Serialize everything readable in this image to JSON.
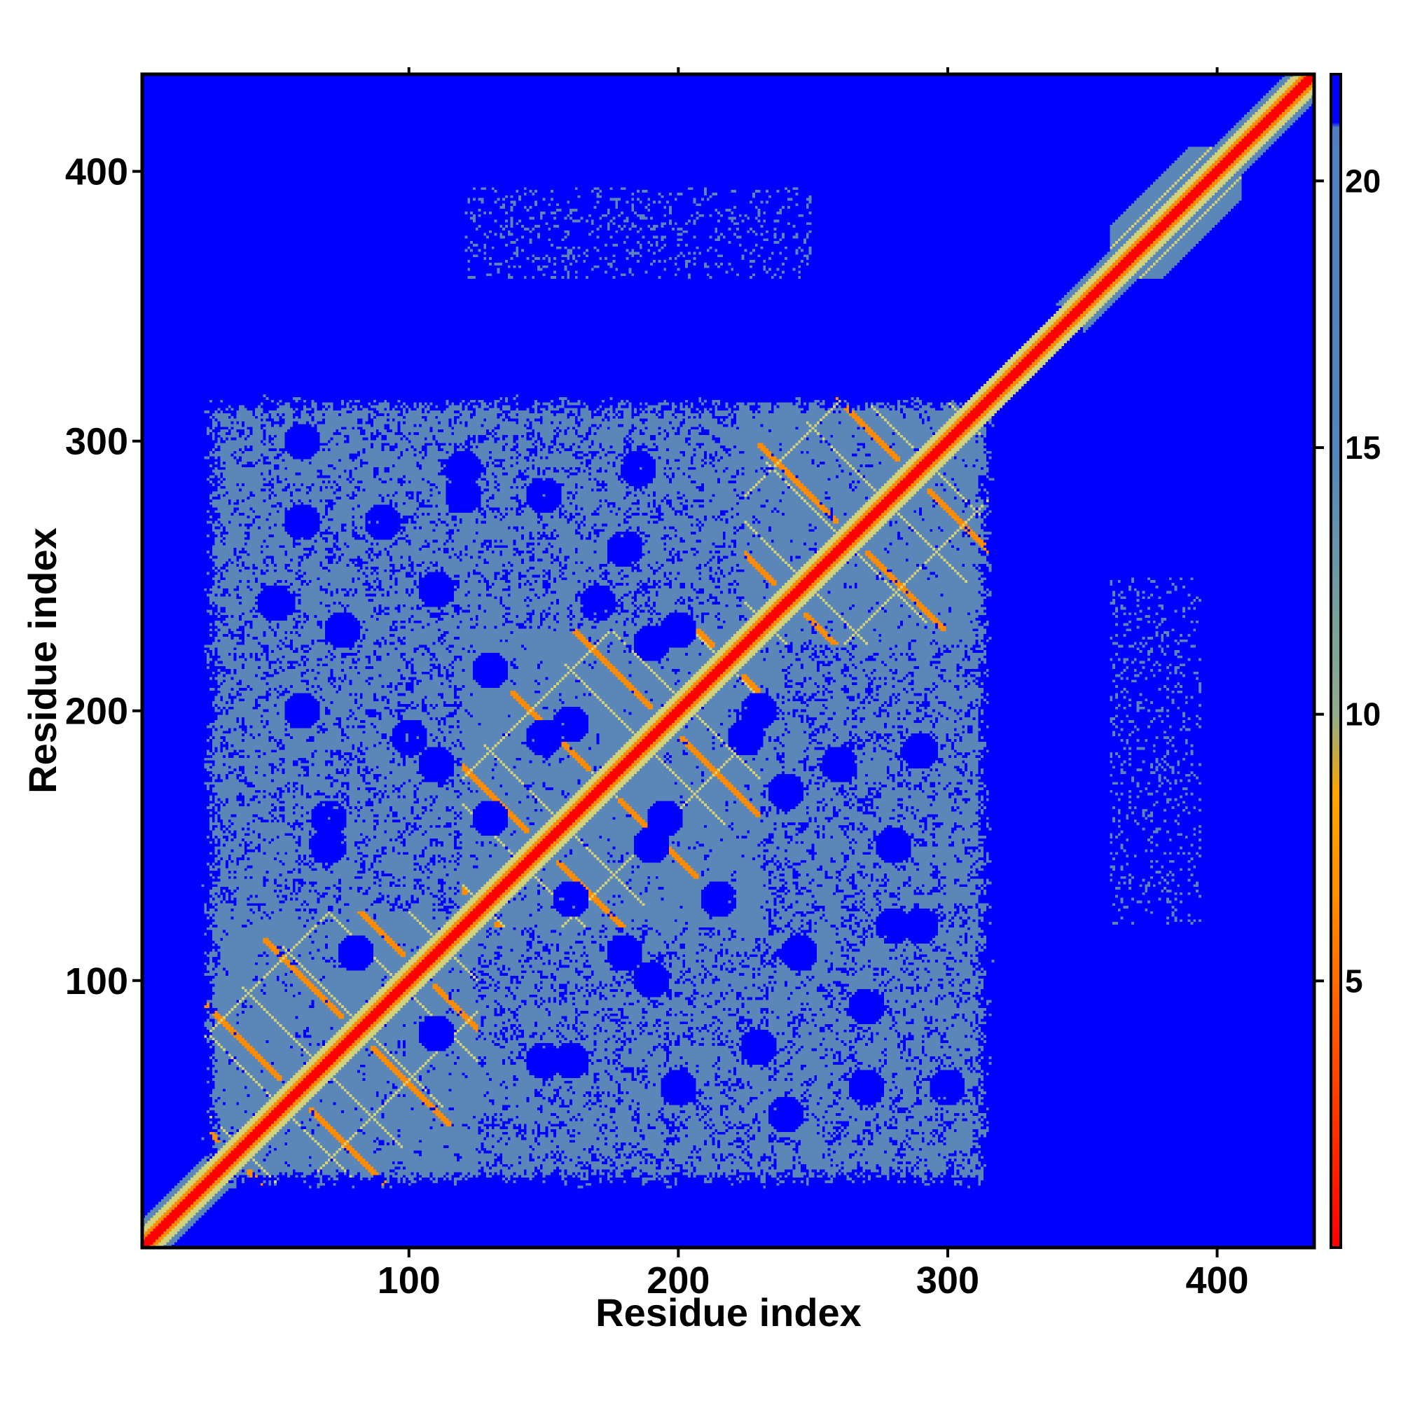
{
  "chart_data": {
    "type": "heatmap",
    "xlabel": "Residue index",
    "ylabel": "Residue index",
    "xlim": [
      1,
      436
    ],
    "ylim": [
      1,
      436
    ],
    "x_ticks": [
      100,
      200,
      300,
      400
    ],
    "y_ticks": [
      100,
      200,
      300,
      400
    ],
    "colorbar": {
      "ticks": [
        5,
        10,
        15,
        20
      ],
      "range": [
        0,
        22
      ],
      "colors": [
        {
          "value": 0,
          "color": "#ff0000"
        },
        {
          "value": 6.5,
          "color": "#ff8c00"
        },
        {
          "value": 8.5,
          "color": "#ffa500"
        },
        {
          "value": 10,
          "color": "#8fae8a"
        },
        {
          "value": 15,
          "color": "#4f86bf"
        },
        {
          "value": 21,
          "color": "#4f7fbf"
        },
        {
          "value": 21.1,
          "color": "#0000ff"
        },
        {
          "value": 22,
          "color": "#0000ff"
        }
      ]
    },
    "colors": {
      "background": "#0000ff",
      "contact": "#5b86b8",
      "diagonal": "#ff0000",
      "near": "#ff8c00",
      "mid": "#d2d27a"
    },
    "domains": [
      {
        "start": 1,
        "end": 22
      },
      {
        "start": 22,
        "end": 125
      },
      {
        "start": 120,
        "end": 230
      },
      {
        "start": 225,
        "end": 318
      },
      {
        "start": 360,
        "end": 436
      }
    ],
    "contact_region": {
      "x": [
        22,
        318
      ],
      "y": [
        22,
        318
      ]
    },
    "off_diagonal_patches": [
      {
        "x": [
          120,
          230
        ],
        "y": [
          22,
          125
        ]
      },
      {
        "x": [
          225,
          318
        ],
        "y": [
          22,
          230
        ]
      }
    ],
    "x_lines": [
      {
        "center": 110,
        "offset": 0
      },
      {
        "center": 165,
        "offset": -60
      }
    ],
    "clear_spots": [
      {
        "x": 170,
        "y": 240
      },
      {
        "x": 190,
        "y": 225
      },
      {
        "x": 150,
        "y": 190
      },
      {
        "x": 260,
        "y": 180
      },
      {
        "x": 280,
        "y": 150
      },
      {
        "x": 195,
        "y": 160
      },
      {
        "x": 215,
        "y": 130
      },
      {
        "x": 245,
        "y": 110
      },
      {
        "x": 270,
        "y": 90
      },
      {
        "x": 180,
        "y": 110
      },
      {
        "x": 200,
        "y": 60
      },
      {
        "x": 150,
        "y": 70
      },
      {
        "x": 100,
        "y": 190
      },
      {
        "x": 70,
        "y": 160
      },
      {
        "x": 75,
        "y": 230
      },
      {
        "x": 300,
        "y": 60
      },
      {
        "x": 290,
        "y": 120
      },
      {
        "x": 60,
        "y": 270
      },
      {
        "x": 120,
        "y": 280
      },
      {
        "x": 185,
        "y": 290
      },
      {
        "x": 240,
        "y": 50
      },
      {
        "x": 80,
        "y": 110
      },
      {
        "x": 130,
        "y": 160
      },
      {
        "x": 230,
        "y": 200
      }
    ]
  }
}
